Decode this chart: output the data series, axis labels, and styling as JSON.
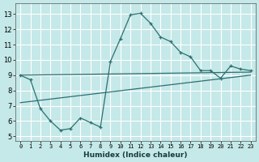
{
  "xlabel": "Humidex (Indice chaleur)",
  "bg_color": "#c5e8e8",
  "grid_color": "#ffffff",
  "line_color": "#2d7070",
  "xlim": [
    -0.5,
    23.5
  ],
  "ylim": [
    4.7,
    13.7
  ],
  "xticks": [
    0,
    1,
    2,
    3,
    4,
    5,
    6,
    7,
    8,
    9,
    10,
    11,
    12,
    13,
    14,
    15,
    16,
    17,
    18,
    19,
    20,
    21,
    22,
    23
  ],
  "yticks": [
    5,
    6,
    7,
    8,
    9,
    10,
    11,
    12,
    13
  ],
  "curve1_x": [
    0,
    1,
    2,
    3,
    4,
    5,
    6,
    7,
    8,
    9,
    10,
    11,
    12,
    13,
    14,
    15,
    16,
    17,
    18,
    19,
    20,
    21,
    22,
    23
  ],
  "curve1_y": [
    9.0,
    8.7,
    6.8,
    6.0,
    5.4,
    5.5,
    6.2,
    5.9,
    5.6,
    9.9,
    11.4,
    12.95,
    13.05,
    12.4,
    11.5,
    11.2,
    10.5,
    10.2,
    9.3,
    9.3,
    8.8,
    9.6,
    9.4,
    9.3
  ],
  "trend1_x": [
    0,
    23
  ],
  "trend1_y": [
    9.0,
    9.2
  ],
  "trend2_x": [
    0,
    23
  ],
  "trend2_y": [
    7.2,
    9.0
  ]
}
